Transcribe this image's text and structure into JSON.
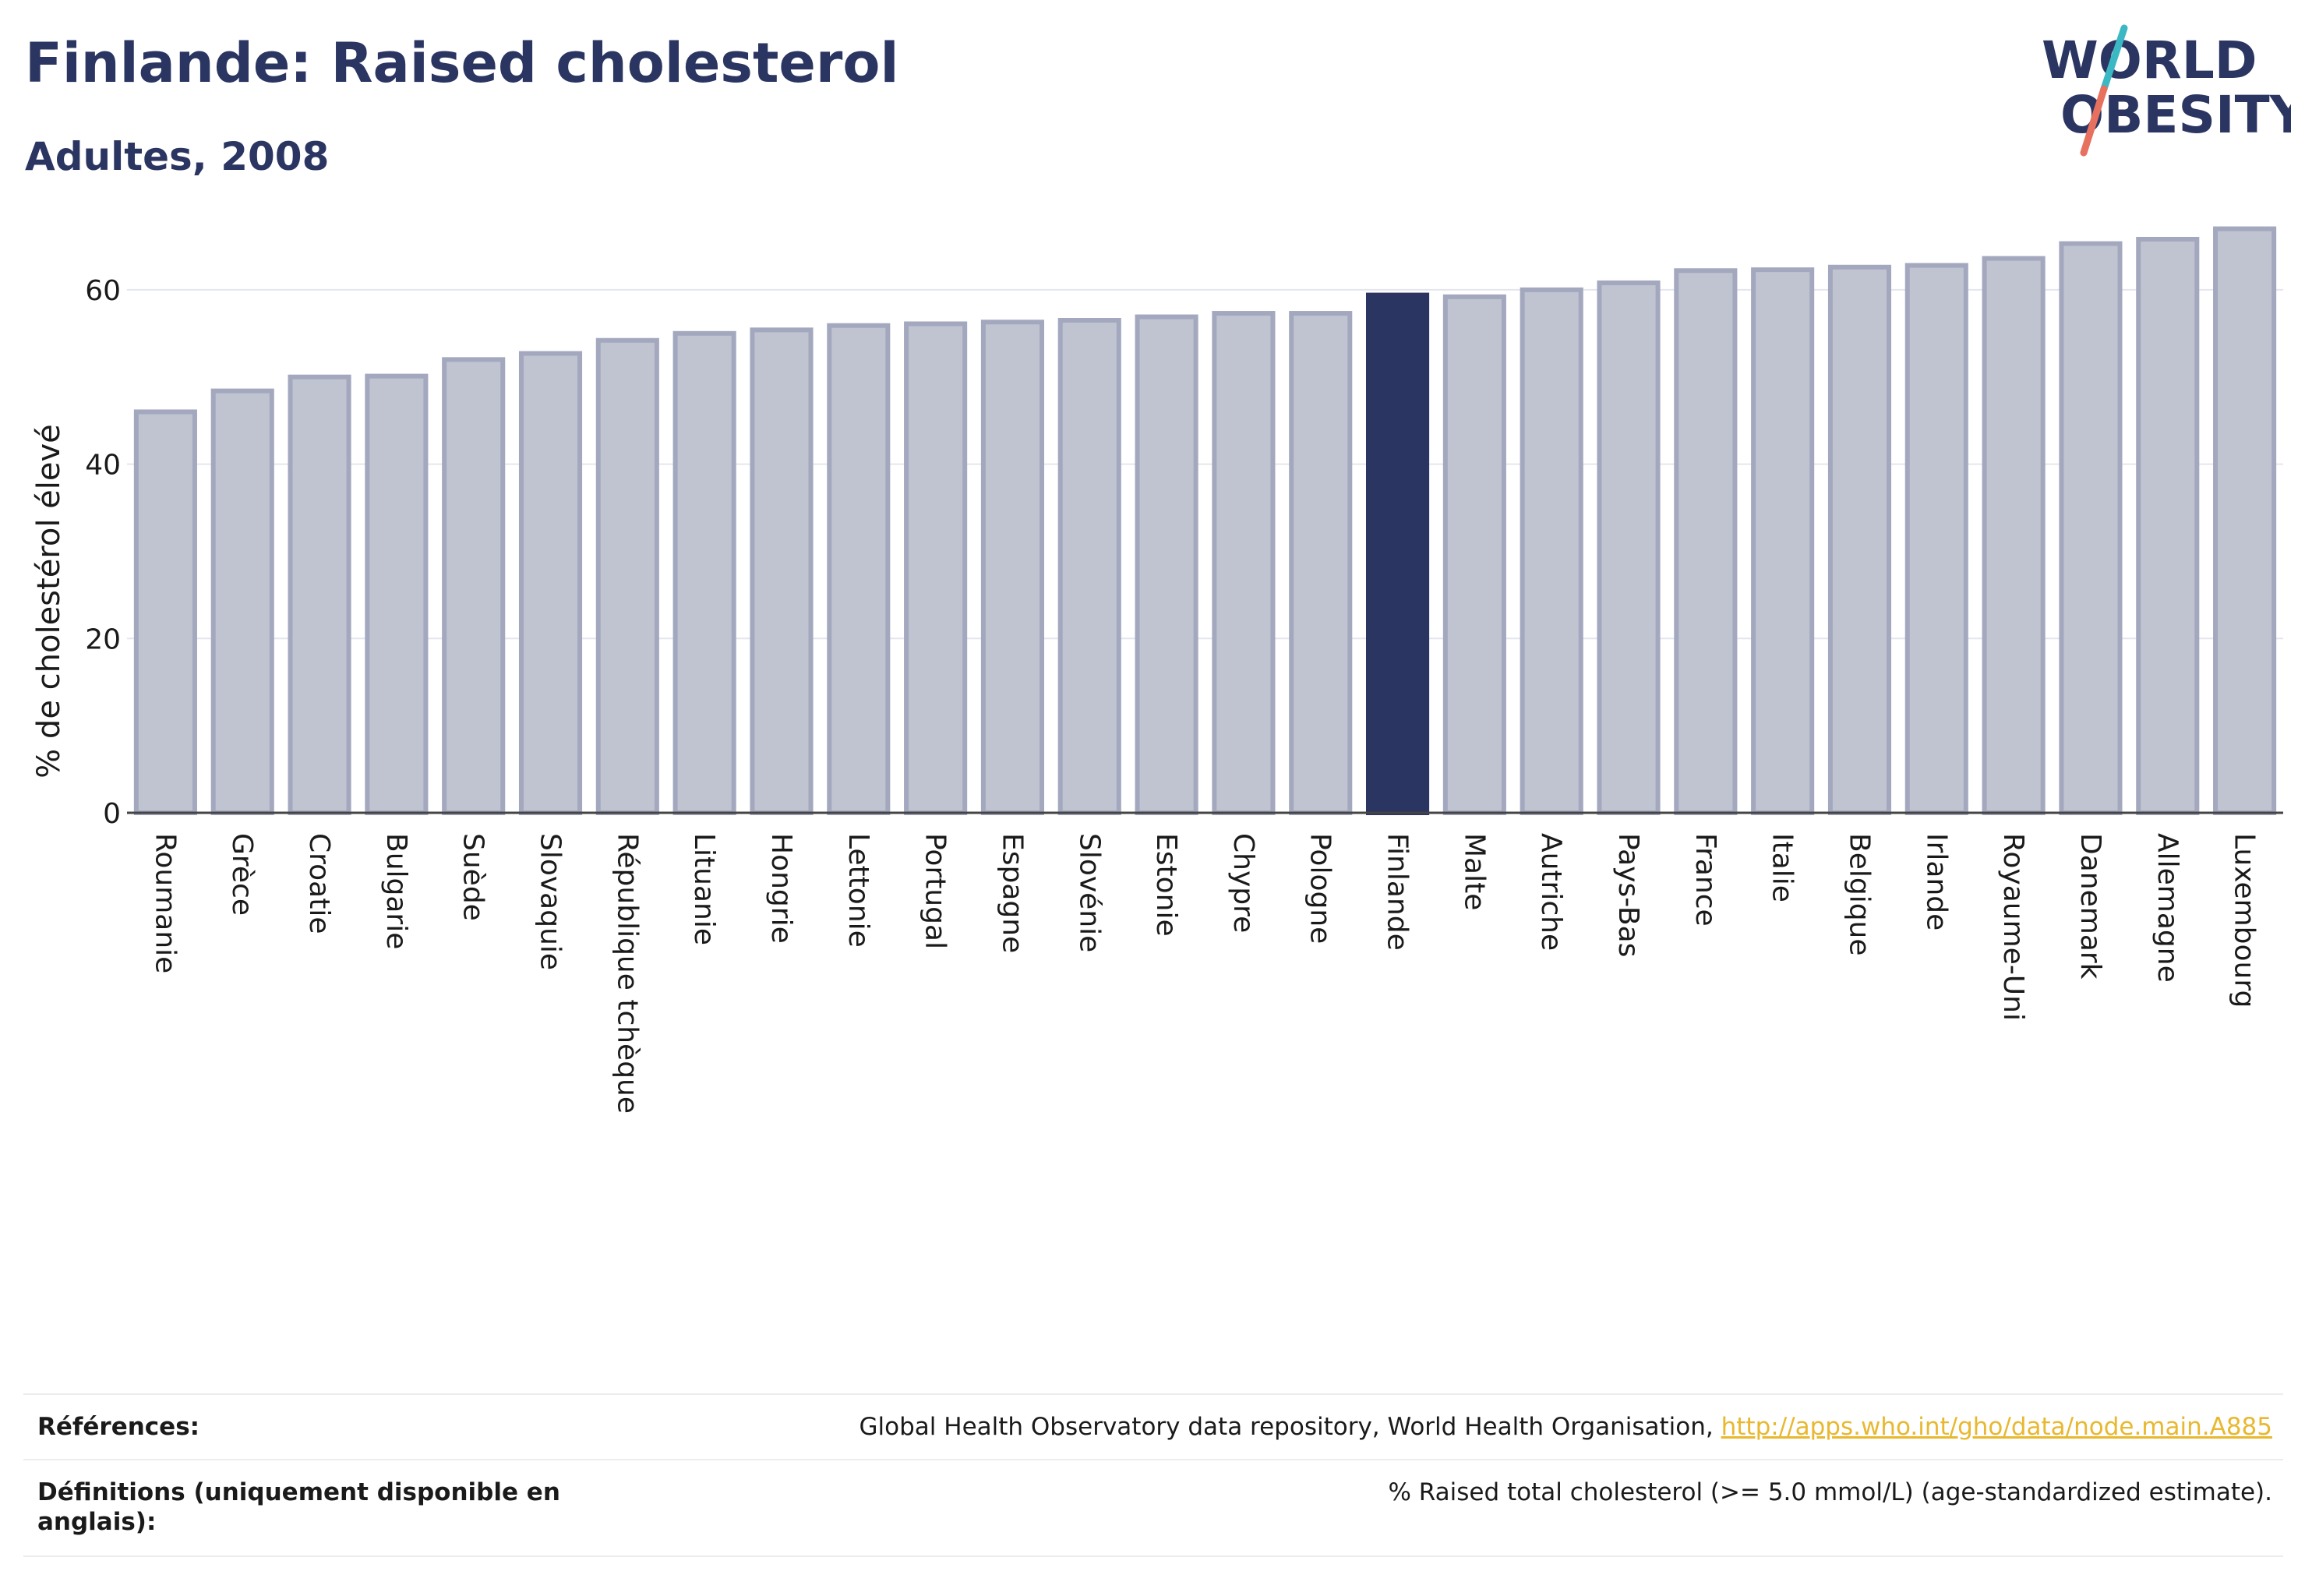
{
  "header": {
    "title": "Finlande: Raised cholesterol",
    "subtitle": "Adultes, 2008"
  },
  "logo": {
    "text_top": "WORLD",
    "text_bottom": "OBESITY",
    "colors": {
      "navy": "#2b3561",
      "teal": "#3bb8c4",
      "coral": "#e8705e"
    }
  },
  "colors": {
    "bar_fill": "#c0c3d0",
    "bar_stroke": "#a3a8bf",
    "highlight_fill": "#2b3561",
    "grid": "#e4e6ee",
    "axis_text": "#1a1a1a"
  },
  "chart_data": {
    "type": "bar",
    "title": "Finlande: Raised cholesterol",
    "subtitle": "Adultes, 2008",
    "ylabel": "% de cholestérol élevé",
    "xlabel": "",
    "ylim": [
      0,
      70
    ],
    "yticks": [
      0,
      20,
      40,
      60
    ],
    "grid": true,
    "highlight": "Finlande",
    "categories": [
      "Roumanie",
      "Grèce",
      "Croatie",
      "Bulgarie",
      "Suède",
      "Slovaquie",
      "République tchèque",
      "Lituanie",
      "Hongrie",
      "Lettonie",
      "Portugal",
      "Espagne",
      "Slovénie",
      "Estonie",
      "Chypre",
      "Pologne",
      "Finlande",
      "Malte",
      "Autriche",
      "Pays-Bas",
      "France",
      "Italie",
      "Belgique",
      "Irlande",
      "Royaume-Uni",
      "Danemark",
      "Allemagne",
      "Luxembourg"
    ],
    "values": [
      46.0,
      48.4,
      50.0,
      50.1,
      52.0,
      52.7,
      54.2,
      55.0,
      55.4,
      55.9,
      56.1,
      56.3,
      56.5,
      56.9,
      57.3,
      57.3,
      59.4,
      59.2,
      60.0,
      60.8,
      62.2,
      62.3,
      62.6,
      62.8,
      63.6,
      65.3,
      65.8,
      67.0
    ]
  },
  "footer": {
    "references_label": "Références:",
    "references_text": "Global Health Observatory data repository, World Health Organisation, ",
    "references_link": "http://apps.who.int/gho/data/node.main.A885",
    "definitions_label": "Définitions (uniquement disponible en anglais):",
    "definitions_text": "% Raised total cholesterol (>= 5.0 mmol/L) (age-standardized estimate)."
  }
}
